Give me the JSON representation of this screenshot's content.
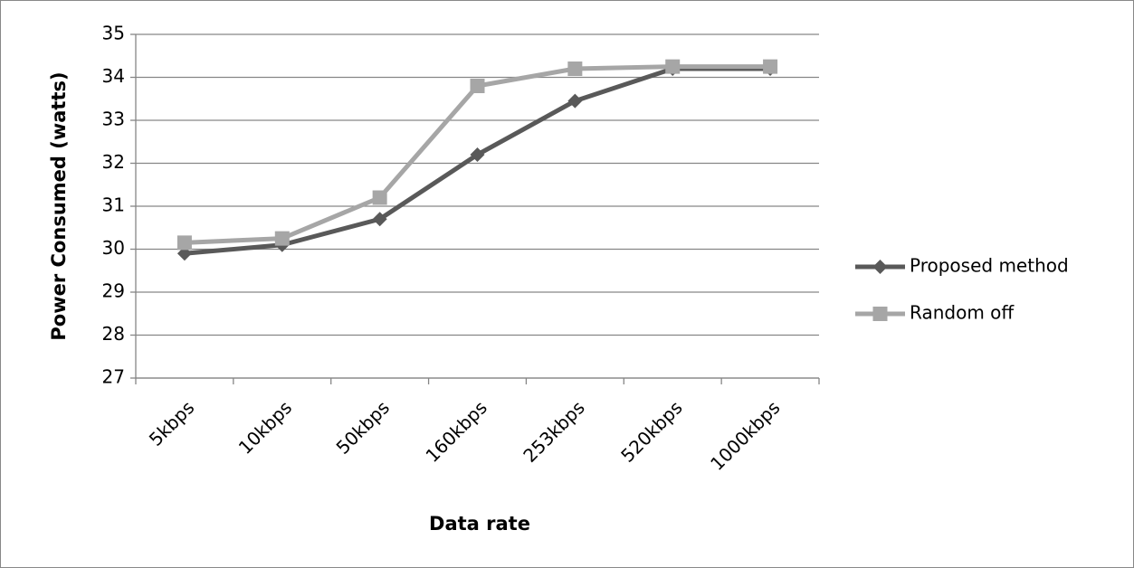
{
  "chart_data": {
    "type": "line",
    "x_label": "Data rate",
    "y_label": "Power Consumed (watts)",
    "categories": [
      "5kbps",
      "10kbps",
      "50kbps",
      "160kbps",
      "253kbps",
      "520kbps",
      "1000kbps"
    ],
    "series": [
      {
        "name": "Proposed method",
        "color": "#595959",
        "marker": "diamond",
        "values": [
          29.9,
          30.1,
          30.7,
          32.2,
          33.45,
          34.2,
          34.2
        ]
      },
      {
        "name": "Random off",
        "color": "#a6a6a6",
        "marker": "square",
        "values": [
          30.15,
          30.25,
          31.2,
          33.8,
          34.2,
          34.25,
          34.25
        ]
      }
    ],
    "ylim": [
      27,
      35
    ],
    "yticks": [
      27,
      28,
      29,
      30,
      31,
      32,
      33,
      34,
      35
    ],
    "grid": true,
    "legend": "right"
  }
}
